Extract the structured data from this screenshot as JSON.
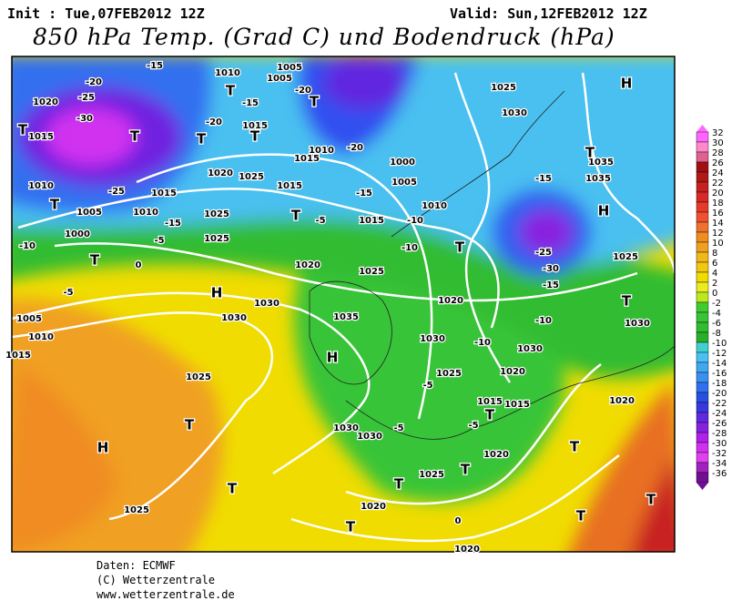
{
  "header": {
    "init": "Init : Tue,07FEB2012 12Z",
    "valid": "Valid: Sun,12FEB2012 12Z",
    "title": "850 hPa Temp. (Grad C) und Bodendruck (hPa)"
  },
  "colorbar": {
    "ticks": [
      32,
      30,
      28,
      26,
      24,
      22,
      20,
      18,
      16,
      14,
      12,
      10,
      8,
      6,
      4,
      2,
      0,
      -2,
      -4,
      -6,
      -8,
      -10,
      -12,
      -14,
      -16,
      -18,
      -20,
      -22,
      -24,
      -26,
      -28,
      -30,
      -32,
      -34,
      -36
    ],
    "colors": [
      "#ff66ff",
      "#ff88cc",
      "#e06090",
      "#a01010",
      "#b01818",
      "#c82020",
      "#d82828",
      "#e83a2a",
      "#f05030",
      "#f07030",
      "#f08c20",
      "#f0a020",
      "#f0b818",
      "#f0c810",
      "#f0dc00",
      "#e8ec20",
      "#bce820",
      "#40cc30",
      "#38c438",
      "#30bc30",
      "#28b028",
      "#40d0d0",
      "#48c0f0",
      "#40a8f0",
      "#3890f0",
      "#3070f0",
      "#2850e0",
      "#3838e0",
      "#6028e0",
      "#8820e0",
      "#b020e8",
      "#d030f0",
      "#e040f0",
      "#a020c0",
      "#701090"
    ]
  },
  "map": {
    "labels": [
      "-15",
      "1010",
      "1005",
      "1005",
      "-20",
      "1020",
      "-25",
      "-30",
      "T",
      "1015",
      "T",
      "-20",
      "-15",
      "T",
      "-20",
      "T",
      "1015",
      "T",
      "T",
      "-20",
      "1010",
      "1015",
      "1020",
      "1025",
      "1015",
      "1010",
      "-25",
      "1015",
      "T",
      "1005",
      "1010",
      "-15",
      "1025",
      "T",
      "-5",
      "-15",
      "1015",
      "1000",
      "1005",
      "1010",
      "-10",
      "1025",
      "1030",
      "H",
      "-15",
      "T",
      "1035",
      "1035",
      "H",
      "-25",
      "-30",
      "-15",
      "-10",
      "1000",
      "-5",
      "1025",
      "0",
      "T",
      "H",
      "-5",
      "1030",
      "1020",
      "1025",
      "T",
      "-10",
      "1020",
      "1005",
      "1030",
      "1035",
      "1010",
      "1015",
      "H",
      "1030",
      "-10",
      "1030",
      "-10",
      "1025",
      "T",
      "H",
      "1030",
      "1030",
      "-5",
      "1025",
      "-5",
      "1020",
      "1015",
      "1015",
      "-5",
      "T",
      "1020",
      "T",
      "1025",
      "T",
      "1025",
      "T",
      "0",
      "1020",
      "T",
      "T",
      "T",
      "T",
      "1020",
      "1025",
      "1030",
      "T",
      "1020"
    ]
  },
  "footer": {
    "lines": [
      "Daten: ECMWF",
      "(C) Wetterzentrale",
      "www.wetterzentrale.de"
    ]
  }
}
